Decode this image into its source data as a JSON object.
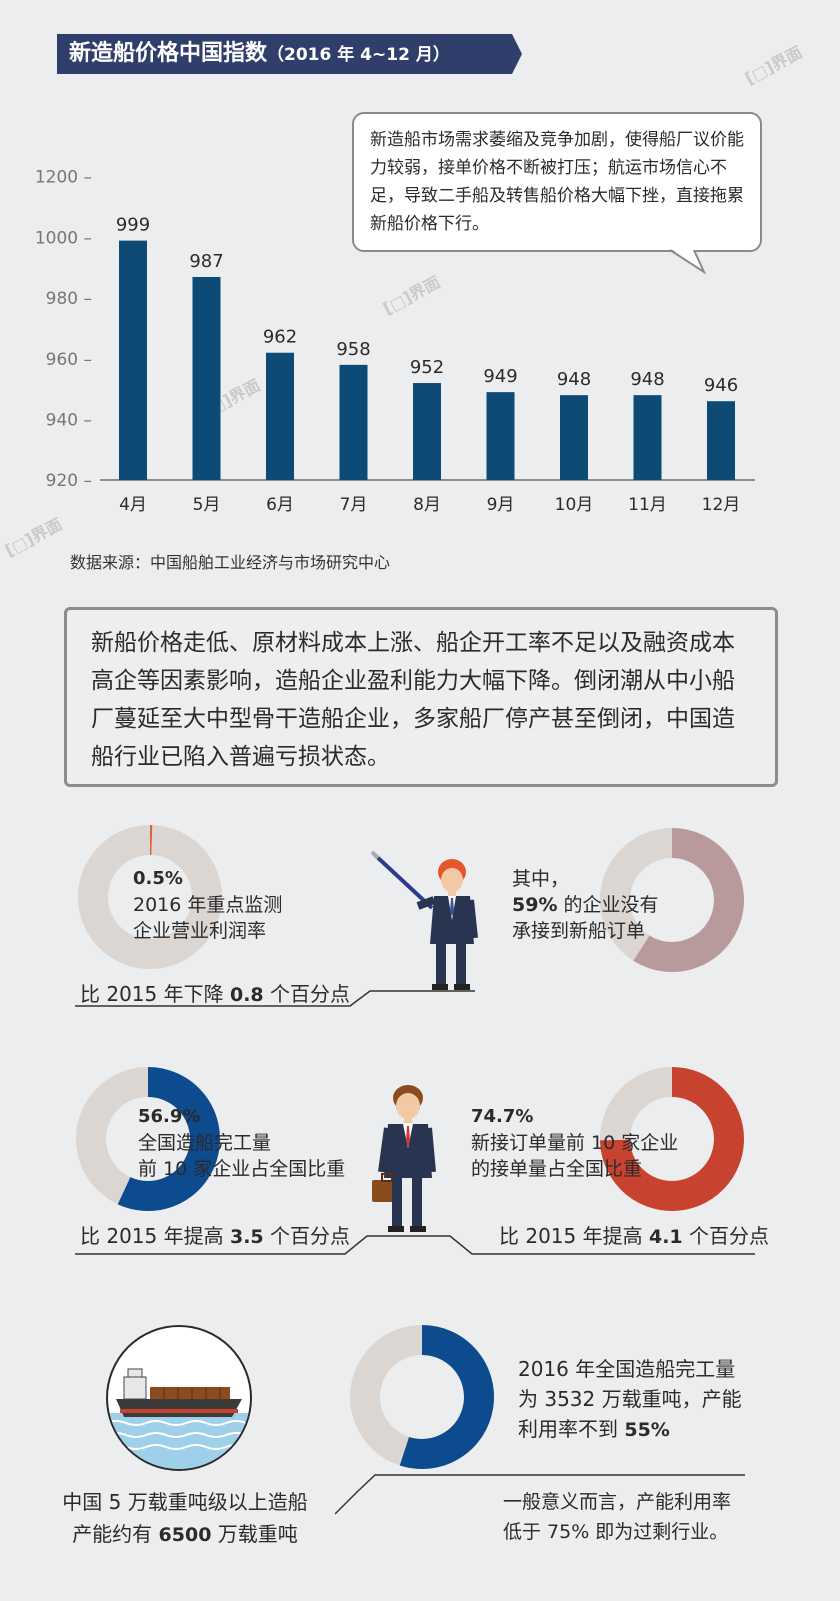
{
  "header": {
    "title": "新造船价格中国指数",
    "subtitle": "（2016 年 4~12 月）"
  },
  "bubble": {
    "text": "新造船市场需求萎缩及竞争加剧，使得船厂议价能力较弱，接单价格不断被打压；航运市场信心不足，导致二手船及转售船价格大幅下挫，直接拖累新船价格下行。"
  },
  "chart_data": {
    "type": "bar",
    "categories": [
      "4月",
      "5月",
      "6月",
      "7月",
      "8月",
      "9月",
      "10月",
      "11月",
      "12月"
    ],
    "values": [
      999,
      987,
      962,
      958,
      952,
      949,
      948,
      948,
      946
    ],
    "title": "新造船价格中国指数（2016 年 4~12 月）",
    "xlabel": "",
    "ylabel": "",
    "ylim": [
      920,
      1200
    ],
    "yticks": [
      920,
      940,
      960,
      980,
      1000,
      1200
    ],
    "color": "#0d4a75",
    "grid": false
  },
  "source": "数据来源：中国船舶工业经济与市场研究中心",
  "summary": "新船价格走低、原材料成本上涨、船企开工率不足以及融资成本高企等因素影响，造船企业盈利能力大幅下降。倒闭潮从中小船厂蔓延至大中型骨干造船企业，多家船厂停产甚至倒闭，中国造船行业已陷入普遍亏损状态。",
  "stats": {
    "profit": {
      "pct_label": "0.5%",
      "value": 0.005,
      "line1": "2016 年重点监测",
      "line2": "企业营业利润率",
      "cap_pre": "比 2015 年下降 ",
      "cap_num": "0.8",
      "cap_post": " 个百分点",
      "color": "#d9633b"
    },
    "no_order": {
      "intro": "其中，",
      "pct_label": "59%",
      "value": 0.59,
      "line1_post": " 的企业没有",
      "line2": "承接到新船订单",
      "color": "#b89a9c"
    },
    "top10_output": {
      "pct_label": "56.9%",
      "value": 0.569,
      "line1": "全国造船完工量",
      "line2": "前 10 家企业占全国比重",
      "cap_pre": "比 2015 年提高 ",
      "cap_num": "3.5",
      "cap_post": " 个百分点",
      "color": "#0c4b8e"
    },
    "top10_orders": {
      "pct_label": "74.7%",
      "value": 0.747,
      "line1": "新接订单量前 10 家企业",
      "line2": "的接单量占全国比重",
      "cap_pre": "比 2015 年提高 ",
      "cap_num": "4.1",
      "cap_post": " 个百分点",
      "color": "#c8432f"
    },
    "capacity": {
      "line1": "中国 5 万载重吨级以上造船",
      "line2_pre": "产能约有 ",
      "line2_num": "6500",
      "line2_post": " 万载重吨"
    },
    "utilization": {
      "value": 0.55,
      "line1": "2016 年全国造船完工量",
      "line2": "为 3532 万载重吨，产能",
      "line3_pre": "利用率不到 ",
      "line3_num": "55%",
      "note1": "一般意义而言，产能利用率",
      "note2": "低于 75% 即为过剩行业。",
      "color": "#0c4b8e"
    }
  },
  "donut_track_color": "#dcd6d3",
  "watermark": "界面"
}
